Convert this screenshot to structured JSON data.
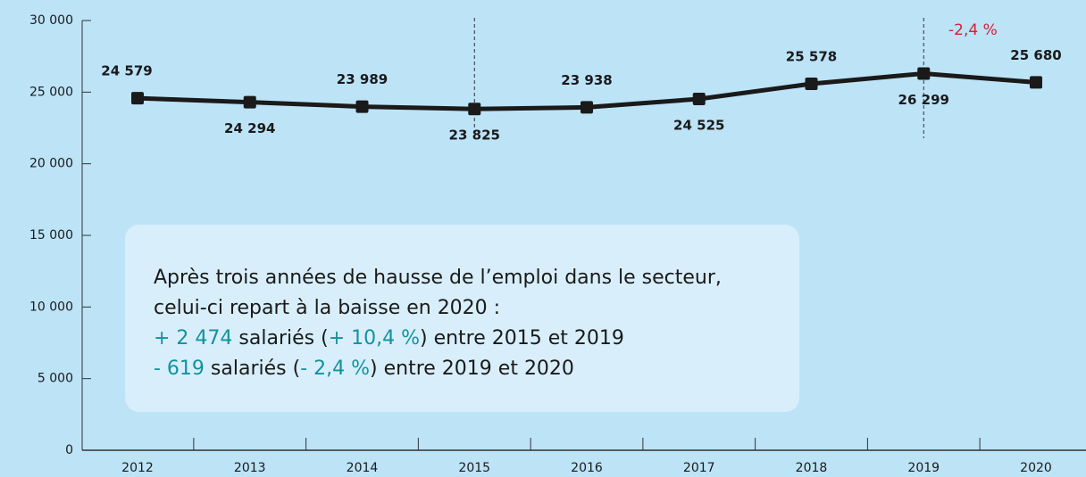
{
  "chart_data": {
    "type": "line",
    "categories": [
      "2012",
      "2013",
      "2014",
      "2015",
      "2016",
      "2017",
      "2018",
      "2019",
      "2020"
    ],
    "series": [
      {
        "name": "Salariés",
        "color": "#1a1a1a",
        "values": [
          24579,
          24294,
          23989,
          23825,
          23938,
          24525,
          25578,
          26299,
          25680
        ],
        "value_labels": [
          "24 579",
          "24 294",
          "23 989",
          "23 825",
          "23 938",
          "24 525",
          "25 578",
          "26 299",
          "25 680"
        ]
      }
    ],
    "ylim": [
      0,
      30000
    ],
    "yticks": [
      {
        "value": 0,
        "label": "0"
      },
      {
        "value": 5000,
        "label": "5 000"
      },
      {
        "value": 10000,
        "label": "10 000"
      },
      {
        "value": 15000,
        "label": "15 000"
      },
      {
        "value": 20000,
        "label": "20 000"
      },
      {
        "value": 25000,
        "label": "25 000"
      },
      {
        "value": 30000,
        "label": "30 000"
      }
    ],
    "grid": false,
    "annotations": [
      "-2,4 %"
    ],
    "note": [
      [
        "Après trois années de hausse de l’emploi dans le secteur,"
      ],
      [
        "celui-ci repart à la baisse en 2020 :"
      ],
      [
        "+ 2 474",
        " salariés (",
        "+ 10,4 %",
        ") entre 2015 et 2019"
      ],
      [
        "- 619",
        " salariés (",
        "- 2,4 %",
        ") entre 2019 et 2020"
      ]
    ]
  }
}
